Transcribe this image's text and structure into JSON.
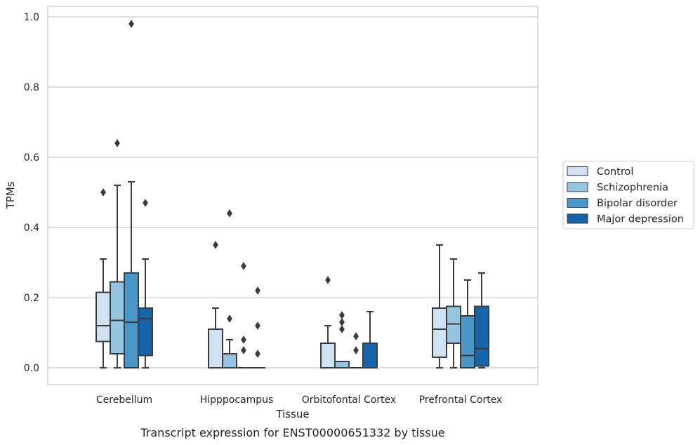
{
  "caption": "Transcript expression for ENST00000651332 by tissue",
  "chart_data": {
    "type": "boxplot",
    "title": "",
    "xlabel": "Tissue",
    "ylabel": "TPMs",
    "ylim": [
      -0.045,
      1.03
    ],
    "yticks": [
      0.0,
      0.2,
      0.4,
      0.6,
      0.8,
      1.0
    ],
    "ytick_labels": [
      "0.0",
      "0.2",
      "0.4",
      "0.6",
      "0.8",
      "1.0"
    ],
    "grid": true,
    "legend_position": "right",
    "categories": [
      "Cerebellum",
      "Hipppocampus",
      "Orbitofontal Cortex",
      "Prefrontal Cortex"
    ],
    "series": [
      {
        "name": "Control",
        "color": "#d0e1f2",
        "boxes": [
          {
            "q1": 0.075,
            "median": 0.12,
            "q3": 0.215,
            "whisker_low": 0.0,
            "whisker_high": 0.31,
            "outliers": [
              0.5
            ]
          },
          {
            "q1": 0.0,
            "median": 0.0,
            "q3": 0.11,
            "whisker_low": 0.0,
            "whisker_high": 0.17,
            "outliers": [
              0.35
            ]
          },
          {
            "q1": 0.0,
            "median": 0.0,
            "q3": 0.07,
            "whisker_low": 0.0,
            "whisker_high": 0.12,
            "outliers": [
              0.25
            ]
          },
          {
            "q1": 0.03,
            "median": 0.11,
            "q3": 0.17,
            "whisker_low": 0.0,
            "whisker_high": 0.35,
            "outliers": []
          }
        ]
      },
      {
        "name": "Schizophrenia",
        "color": "#94c4df",
        "boxes": [
          {
            "q1": 0.04,
            "median": 0.135,
            "q3": 0.245,
            "whisker_low": 0.0,
            "whisker_high": 0.52,
            "outliers": [
              0.64
            ]
          },
          {
            "q1": 0.0,
            "median": 0.0,
            "q3": 0.04,
            "whisker_low": 0.0,
            "whisker_high": 0.08,
            "outliers": [
              0.14,
              0.44
            ]
          },
          {
            "q1": 0.0,
            "median": 0.0,
            "q3": 0.018,
            "whisker_low": 0.0,
            "whisker_high": 0.018,
            "outliers": [
              0.11,
              0.13,
              0.15
            ]
          },
          {
            "q1": 0.07,
            "median": 0.125,
            "q3": 0.175,
            "whisker_low": 0.0,
            "whisker_high": 0.31,
            "outliers": []
          }
        ]
      },
      {
        "name": "Bipolar disorder",
        "color": "#4a98c9",
        "boxes": [
          {
            "q1": 0.0,
            "median": 0.13,
            "q3": 0.27,
            "whisker_low": 0.0,
            "whisker_high": 0.53,
            "outliers": [
              0.98
            ]
          },
          {
            "q1": 0.0,
            "median": 0.0,
            "q3": 0.0,
            "whisker_low": 0.0,
            "whisker_high": 0.0,
            "outliers": [
              0.05,
              0.08,
              0.29
            ]
          },
          {
            "q1": 0.0,
            "median": 0.0,
            "q3": 0.0,
            "whisker_low": 0.0,
            "whisker_high": 0.0,
            "outliers": [
              0.05,
              0.09
            ]
          },
          {
            "q1": 0.0,
            "median": 0.035,
            "q3": 0.148,
            "whisker_low": 0.0,
            "whisker_high": 0.25,
            "outliers": []
          }
        ]
      },
      {
        "name": "Major depression",
        "color": "#1764ab",
        "boxes": [
          {
            "q1": 0.035,
            "median": 0.14,
            "q3": 0.17,
            "whisker_low": 0.0,
            "whisker_high": 0.31,
            "outliers": [
              0.47
            ]
          },
          {
            "q1": 0.0,
            "median": 0.0,
            "q3": 0.0,
            "whisker_low": 0.0,
            "whisker_high": 0.0,
            "outliers": [
              0.04,
              0.12,
              0.22
            ]
          },
          {
            "q1": 0.0,
            "median": 0.0,
            "q3": 0.07,
            "whisker_low": 0.0,
            "whisker_high": 0.16,
            "outliers": []
          },
          {
            "q1": 0.005,
            "median": 0.055,
            "q3": 0.175,
            "whisker_low": 0.0,
            "whisker_high": 0.27,
            "outliers": []
          }
        ]
      }
    ]
  }
}
